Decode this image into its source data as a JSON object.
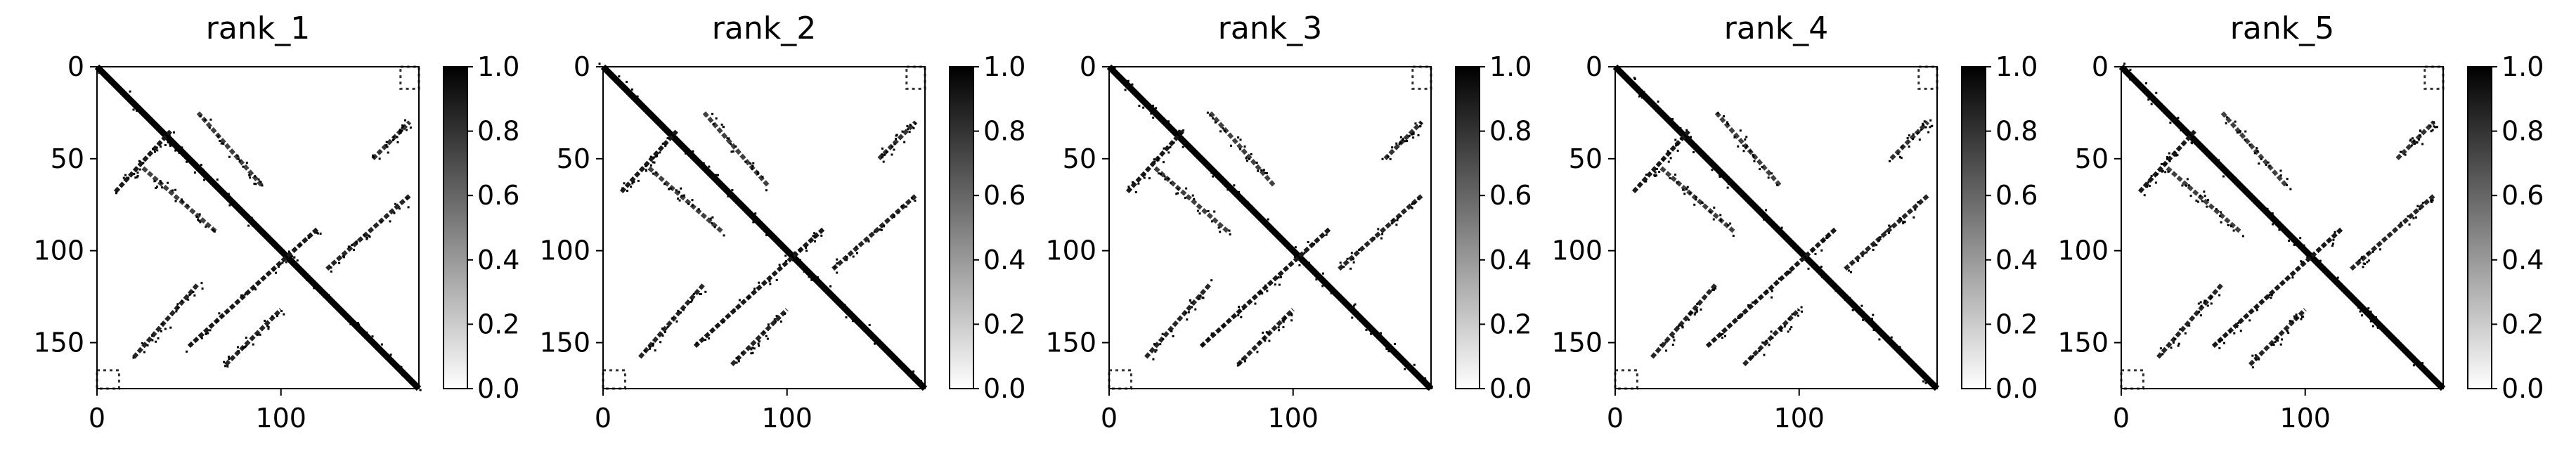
{
  "chart_data": {
    "type": "heatmap",
    "colormap": "Greys",
    "matrix_size": 175,
    "panels": [
      {
        "title": "rank_1"
      },
      {
        "title": "rank_2"
      },
      {
        "title": "rank_3"
      },
      {
        "title": "rank_4"
      },
      {
        "title": "rank_5"
      }
    ],
    "x_ticks": [
      0,
      100
    ],
    "x_tick_labels": [
      "0",
      "100"
    ],
    "y_ticks": [
      0,
      50,
      100,
      150
    ],
    "y_tick_labels": [
      "0",
      "50",
      "100",
      "150"
    ],
    "colorbar": {
      "range": [
        0.0,
        1.0
      ],
      "ticks": [
        0.0,
        0.2,
        0.4,
        0.6,
        0.8,
        1.0
      ],
      "tick_labels": [
        "0.0",
        "0.2",
        "0.4",
        "0.6",
        "0.8",
        "1.0"
      ]
    },
    "contact_features": [
      {
        "kind": "diagonal",
        "from": [
          0,
          0
        ],
        "to": [
          175,
          175
        ],
        "value": 1.0
      },
      {
        "kind": "anti-diagonal-band",
        "from": [
          10,
          68
        ],
        "to": [
          40,
          35
        ],
        "value": 0.9
      },
      {
        "kind": "anti-diagonal-band",
        "from": [
          50,
          152
        ],
        "to": [
          120,
          88
        ],
        "value": 0.9
      },
      {
        "kind": "anti-diagonal-band",
        "from": [
          70,
          162
        ],
        "to": [
          100,
          132
        ],
        "value": 0.85
      },
      {
        "kind": "anti-diagonal-band",
        "from": [
          125,
          110
        ],
        "to": [
          170,
          70
        ],
        "value": 0.85
      },
      {
        "kind": "anti-diagonal-band",
        "from": [
          150,
          50
        ],
        "to": [
          170,
          30
        ],
        "value": 0.8
      },
      {
        "kind": "anti-diagonal-band",
        "from": [
          20,
          158
        ],
        "to": [
          55,
          118
        ],
        "value": 0.85
      },
      {
        "kind": "parallel-band",
        "from": [
          55,
          25
        ],
        "to": [
          90,
          65
        ],
        "value": 0.75
      },
      {
        "kind": "parallel-band",
        "from": [
          25,
          55
        ],
        "to": [
          65,
          90
        ],
        "value": 0.75
      },
      {
        "kind": "corner-block",
        "from": [
          0,
          165
        ],
        "to": [
          12,
          175
        ],
        "value": 0.8
      },
      {
        "kind": "corner-block",
        "from": [
          165,
          0
        ],
        "to": [
          175,
          12
        ],
        "value": 0.8
      }
    ]
  }
}
